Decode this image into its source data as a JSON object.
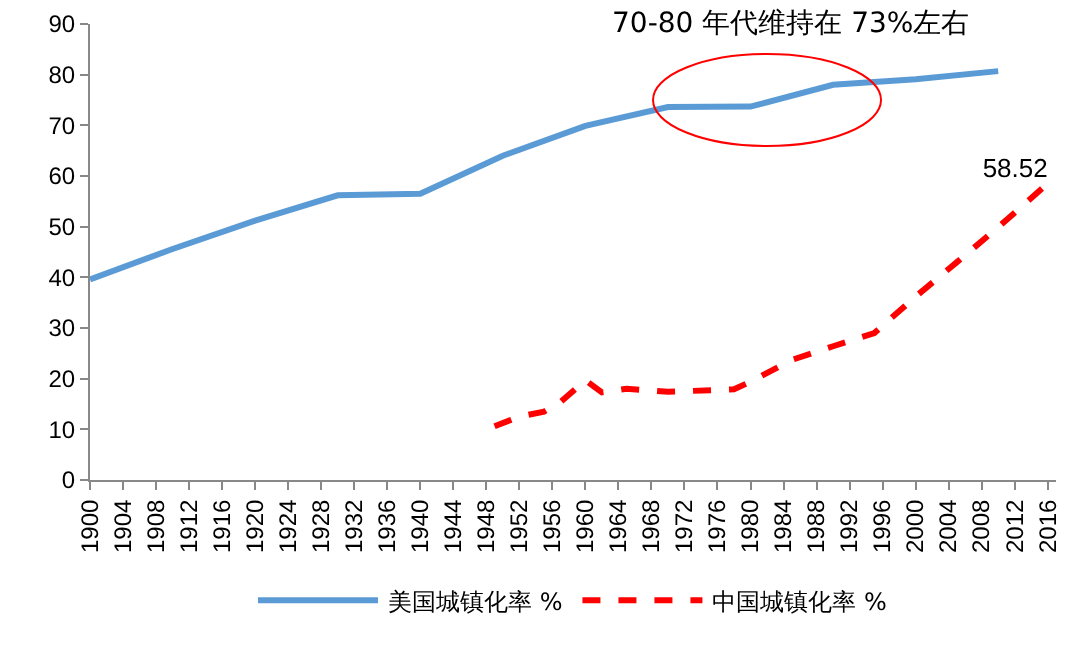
{
  "chart_data": {
    "type": "line",
    "x": [
      1900,
      1910,
      1920,
      1930,
      1940,
      1950,
      1960,
      1970,
      1980,
      1990,
      2000,
      2010
    ],
    "series": [
      {
        "name": "美国城镇化率 %",
        "color": "#5b9bd5",
        "line_style": "solid",
        "values": [
          39.6,
          45.6,
          51.2,
          56.2,
          56.5,
          64.0,
          69.9,
          73.6,
          73.7,
          78.0,
          79.1,
          80.7
        ]
      },
      {
        "name": "中国城镇化率 %",
        "color": "#ff0000",
        "line_style": "dashed",
        "x": [
          1949,
          1952,
          1955,
          1957,
          1960,
          1962,
          1965,
          1970,
          1978,
          1980,
          1985,
          1990,
          1995,
          2000,
          2005,
          2010,
          2016
        ],
        "values": [
          10.6,
          12.5,
          13.5,
          15.4,
          19.7,
          17.3,
          18.0,
          17.4,
          17.9,
          19.4,
          23.7,
          26.4,
          29.0,
          36.2,
          43.0,
          49.9,
          58.52
        ],
        "value_labels": [
          null,
          null,
          null,
          null,
          null,
          null,
          null,
          null,
          null,
          null,
          null,
          null,
          null,
          null,
          null,
          null,
          "58.52"
        ]
      }
    ],
    "annotations": [
      {
        "text": "70-80 年代维持在 73%左右",
        "x": 1982,
        "y": 75
      }
    ],
    "xlim": [
      1900,
      2017
    ],
    "xticks": [
      1900,
      1904,
      1908,
      1912,
      1916,
      1920,
      1924,
      1928,
      1932,
      1936,
      1940,
      1944,
      1948,
      1952,
      1956,
      1960,
      1964,
      1968,
      1972,
      1976,
      1980,
      1984,
      1988,
      1992,
      1996,
      2000,
      2004,
      2008,
      2012,
      2016
    ],
    "ylim": [
      0,
      90
    ],
    "yticks": [
      0,
      10,
      20,
      30,
      40,
      50,
      60,
      70,
      80,
      90
    ],
    "grid": false,
    "legend": "bottom",
    "marker": "none"
  }
}
